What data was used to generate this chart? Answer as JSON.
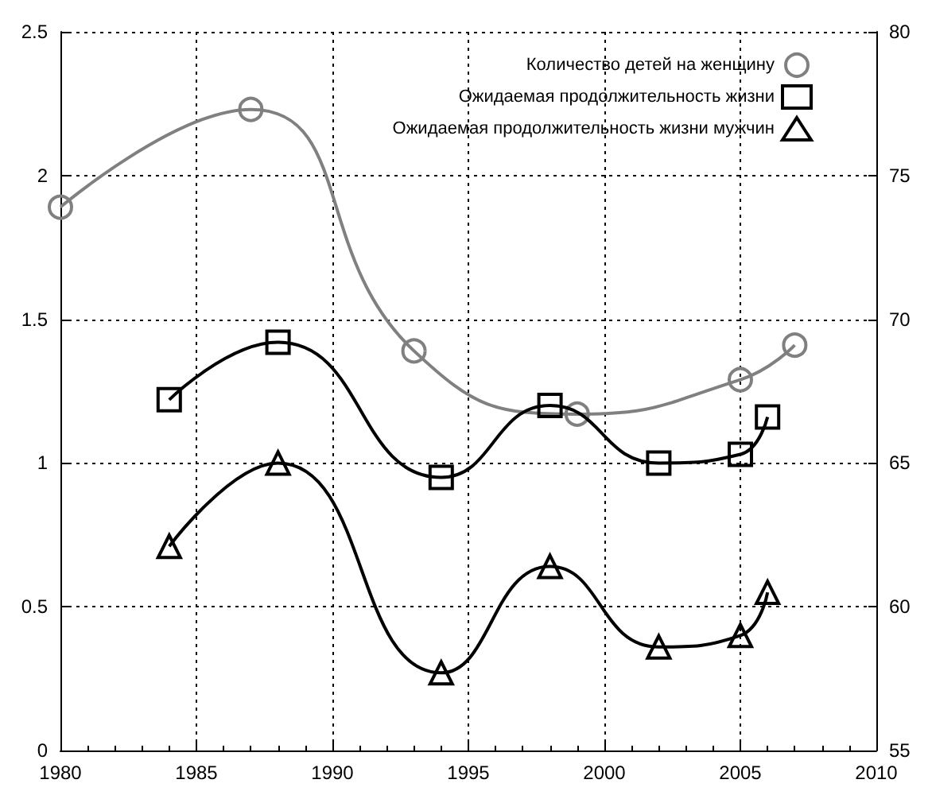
{
  "chart_data": {
    "type": "line",
    "xlim": [
      1980,
      2010
    ],
    "xticks": [
      1980,
      1985,
      1990,
      1995,
      2000,
      2005,
      2010
    ],
    "ylim": [
      0,
      2.5
    ],
    "yticks": [
      0,
      0.5,
      1,
      1.5,
      2,
      2.5
    ],
    "y2lim": [
      55,
      80
    ],
    "y2ticks": [
      55,
      60,
      65,
      70,
      75,
      80
    ],
    "grid": true,
    "legend": "top right",
    "series": [
      {
        "name": "Количество детей на женщину",
        "color": "#808080",
        "marker": "circle",
        "x": [
          1980,
          1987,
          1993,
          1999,
          2005,
          2007
        ],
        "values": [
          1.89,
          2.23,
          1.39,
          1.17,
          1.29,
          1.41
        ]
      },
      {
        "name": "Ожидаемая продолжительность жизни",
        "color": "#000000",
        "marker": "square",
        "axis": "y2",
        "x": [
          1984,
          1988,
          1994,
          1998,
          2002,
          2005,
          2006
        ],
        "values": [
          67.2,
          69.2,
          64.5,
          67.0,
          65.0,
          65.3,
          66.6
        ]
      },
      {
        "name": "Ожидаемая продолжительность жизни мужчин",
        "color": "#000000",
        "marker": "triangle",
        "axis": "y2",
        "x": [
          1984,
          1988,
          1994,
          1998,
          2002,
          2005,
          2006
        ],
        "values": [
          62.1,
          65.0,
          57.7,
          61.4,
          58.6,
          59.0,
          60.5
        ]
      }
    ]
  }
}
